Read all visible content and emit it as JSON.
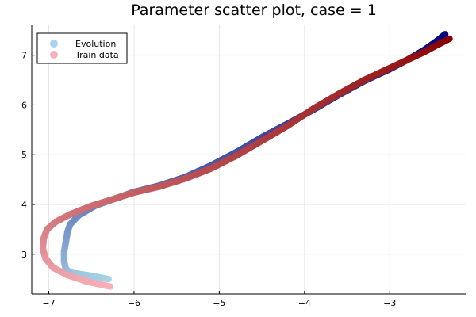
{
  "chart_data": {
    "type": "scatter",
    "title": "Parameter scatter plot, case = 1",
    "xlabel": "",
    "ylabel": "",
    "xlim": [
      -7.2,
      -2.1
    ],
    "ylim": [
      2.2,
      7.6
    ],
    "xticks": [
      -7,
      -6,
      -5,
      -4,
      -3
    ],
    "yticks": [
      3,
      4,
      5,
      6,
      7
    ],
    "xtick_labels": [
      "−7",
      "−6",
      "−5",
      "−4",
      "−3"
    ],
    "ytick_labels": [
      "3",
      "4",
      "5",
      "6",
      "7"
    ],
    "grid": true,
    "legend_position": "top-left",
    "series": [
      {
        "name": "Evolution",
        "color_start": "#a8d4e6",
        "color_end": "#00007f",
        "points": [
          [
            -6.3,
            2.5
          ],
          [
            -6.55,
            2.58
          ],
          [
            -6.75,
            2.63
          ],
          [
            -6.8,
            2.7
          ],
          [
            -6.82,
            2.85
          ],
          [
            -6.82,
            3.05
          ],
          [
            -6.8,
            3.25
          ],
          [
            -6.78,
            3.45
          ],
          [
            -6.75,
            3.6
          ],
          [
            -6.65,
            3.78
          ],
          [
            -6.45,
            3.98
          ],
          [
            -6.2,
            4.13
          ],
          [
            -6.0,
            4.25
          ],
          [
            -5.7,
            4.38
          ],
          [
            -5.4,
            4.55
          ],
          [
            -5.1,
            4.78
          ],
          [
            -4.8,
            5.05
          ],
          [
            -4.5,
            5.35
          ],
          [
            -4.2,
            5.62
          ],
          [
            -3.9,
            5.9
          ],
          [
            -3.6,
            6.2
          ],
          [
            -3.3,
            6.48
          ],
          [
            -3.0,
            6.72
          ],
          [
            -2.8,
            6.9
          ],
          [
            -2.6,
            7.1
          ],
          [
            -2.45,
            7.28
          ],
          [
            -2.35,
            7.42
          ]
        ]
      },
      {
        "name": "Train data",
        "color_start": "#f7b1ba",
        "color_end": "#870000",
        "points": [
          [
            -6.28,
            2.35
          ],
          [
            -6.55,
            2.45
          ],
          [
            -6.78,
            2.58
          ],
          [
            -6.95,
            2.73
          ],
          [
            -7.04,
            2.92
          ],
          [
            -7.07,
            3.12
          ],
          [
            -7.06,
            3.32
          ],
          [
            -7.02,
            3.5
          ],
          [
            -6.92,
            3.65
          ],
          [
            -6.75,
            3.8
          ],
          [
            -6.5,
            3.97
          ],
          [
            -6.2,
            4.13
          ],
          [
            -6.0,
            4.24
          ],
          [
            -5.7,
            4.36
          ],
          [
            -5.4,
            4.52
          ],
          [
            -5.1,
            4.72
          ],
          [
            -4.8,
            4.98
          ],
          [
            -4.5,
            5.28
          ],
          [
            -4.2,
            5.58
          ],
          [
            -3.9,
            5.92
          ],
          [
            -3.6,
            6.22
          ],
          [
            -3.3,
            6.5
          ],
          [
            -3.0,
            6.74
          ],
          [
            -2.8,
            6.9
          ],
          [
            -2.6,
            7.06
          ],
          [
            -2.45,
            7.2
          ],
          [
            -2.3,
            7.33
          ]
        ]
      }
    ]
  }
}
